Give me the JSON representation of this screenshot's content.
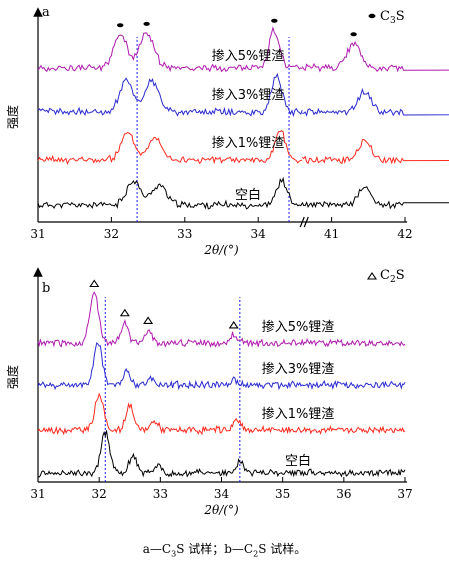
{
  "panels": [
    {
      "panel_label": "a",
      "legend": {
        "marker": "dot",
        "text": "C",
        "sub": "3",
        "text_after": "S"
      },
      "chart_data": {
        "type": "line",
        "title": "",
        "xlabel_main": "2θ/(°)",
        "ylabel": "强度",
        "x_axis_kind": "broken",
        "x_ticks": [
          "31",
          "32",
          "33",
          "34",
          "41",
          "42"
        ],
        "x_segments": [
          [
            31,
            34.6
          ],
          [
            40.6,
            42
          ]
        ],
        "grid": false,
        "vlines": [
          32.35,
          34.42
        ],
        "series": [
          {
            "name": "空白",
            "color": "#000000",
            "peaks": [
              [
                32.3,
                0.55,
                0.09
              ],
              [
                32.65,
                0.45,
                0.1
              ],
              [
                34.32,
                0.55,
                0.07
              ],
              [
                41.45,
                0.38,
                0.09
              ]
            ],
            "seed": 11
          },
          {
            "name": "掺入1%锂渣",
            "color": "#ff2a1f",
            "peaks": [
              [
                32.22,
                0.6,
                0.09
              ],
              [
                32.6,
                0.5,
                0.1
              ],
              [
                34.3,
                0.65,
                0.07
              ],
              [
                41.45,
                0.42,
                0.09
              ]
            ],
            "seed": 23
          },
          {
            "name": "掺入3%锂渣",
            "color": "#2a2ad0",
            "peaks": [
              [
                32.2,
                0.7,
                0.09
              ],
              [
                32.55,
                0.68,
                0.1
              ],
              [
                34.25,
                0.78,
                0.07
              ],
              [
                41.45,
                0.45,
                0.09
              ]
            ],
            "seed": 37
          },
          {
            "name": "掺入5%锂渣",
            "color": "#b01ab0",
            "peaks": [
              [
                32.12,
                0.75,
                0.09
              ],
              [
                32.48,
                0.78,
                0.1
              ],
              [
                34.22,
                0.85,
                0.07
              ],
              [
                41.3,
                0.55,
                0.09
              ]
            ],
            "seed": 53
          }
        ],
        "markers": [
          {
            "series": "掺入5%锂渣",
            "x": 32.12
          },
          {
            "series": "掺入5%锂渣",
            "x": 32.48
          },
          {
            "series": "掺入5%锂渣",
            "x": 34.22
          },
          {
            "series": "掺入5%锂渣",
            "x": 41.3
          }
        ]
      }
    },
    {
      "panel_label": "b",
      "legend": {
        "marker": "triangle",
        "text": "C",
        "sub": "2",
        "text_after": "S"
      },
      "chart_data": {
        "type": "line",
        "title": "",
        "xlabel_main": "2θ/(°)",
        "ylabel": "强度",
        "x_axis_kind": "linear",
        "x_ticks": [
          "31",
          "32",
          "33",
          "34",
          "35",
          "36",
          "37"
        ],
        "x_segments": [
          [
            31,
            37
          ]
        ],
        "grid": false,
        "vlines": [
          32.1,
          34.3
        ],
        "series": [
          {
            "name": "空白",
            "color": "#000000",
            "peaks": [
              [
                32.1,
                0.9,
                0.07
              ],
              [
                32.55,
                0.4,
                0.06
              ],
              [
                32.95,
                0.2,
                0.06
              ],
              [
                34.3,
                0.25,
                0.06
              ]
            ],
            "seed": 71
          },
          {
            "name": "掺入1%锂渣",
            "color": "#ff2a1f",
            "peaks": [
              [
                32.0,
                0.8,
                0.07
              ],
              [
                32.5,
                0.55,
                0.06
              ],
              [
                32.9,
                0.2,
                0.06
              ],
              [
                34.25,
                0.22,
                0.06
              ]
            ],
            "seed": 83
          },
          {
            "name": "掺入3%锂渣",
            "color": "#2a2ad0",
            "peaks": [
              [
                31.98,
                0.95,
                0.07
              ],
              [
                32.45,
                0.3,
                0.06
              ],
              [
                32.85,
                0.15,
                0.06
              ],
              [
                34.2,
                0.12,
                0.06
              ]
            ],
            "seed": 97
          },
          {
            "name": "掺入5%锂渣",
            "color": "#b01ab0",
            "peaks": [
              [
                31.92,
                1.1,
                0.07
              ],
              [
                32.42,
                0.45,
                0.06
              ],
              [
                32.8,
                0.28,
                0.06
              ],
              [
                34.2,
                0.18,
                0.06
              ]
            ],
            "seed": 109
          }
        ],
        "markers": [
          {
            "series": "掺入5%锂渣",
            "x": 31.92
          },
          {
            "series": "掺入5%锂渣",
            "x": 32.42
          },
          {
            "series": "掺入5%锂渣",
            "x": 32.8
          },
          {
            "series": "掺入5%锂渣",
            "x": 34.2
          }
        ]
      }
    }
  ],
  "caption": {
    "p1": "a—C",
    "s1": "3",
    "p2": "S 试样；b—C",
    "s2": "2",
    "p3": "S 试样。"
  }
}
